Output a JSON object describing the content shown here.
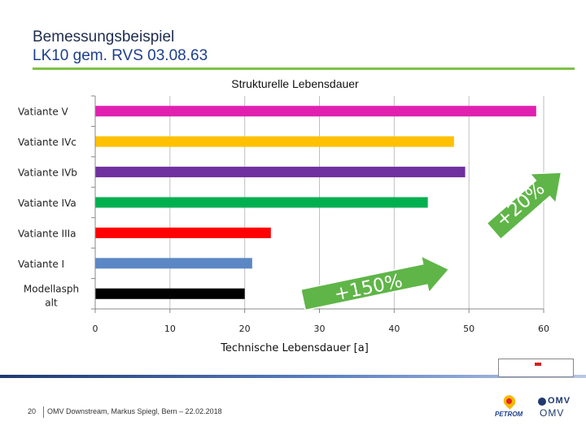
{
  "slide": {
    "title": "Bemessungsbeispiel",
    "subtitle": "LK10 gem. RVS 03.08.63",
    "page_number": "20",
    "footer": "OMV Downstream, Markus Spiegl, Bern – 22.02.2018",
    "logos": [
      "petrom-logo",
      "omv-logo",
      "university-stamp-logo"
    ],
    "stamp_text": [
      "",
      ""
    ],
    "petrom_label": "PETROM",
    "omv_top": "OMV",
    "omv_bottom": "OMV"
  },
  "colors": {
    "title": "#1f2d4d",
    "subtitle": "#1c3f8c",
    "accent_line": "#7ec242",
    "arrow": "#5fb548"
  },
  "chart_data": {
    "type": "bar",
    "orientation": "horizontal",
    "title": "Strukturelle Lebensdauer",
    "xlabel": "Technische Lebensdauer [a]",
    "ylabel": "",
    "xlim": [
      0,
      60
    ],
    "xticks": [
      "0",
      "10",
      "20",
      "30",
      "40",
      "50",
      "60"
    ],
    "grid": true,
    "legend": "none",
    "categories": [
      "Vatiante V",
      "Vatiante IVc",
      "Vatiante IVb",
      "Vatiante IVa",
      "Vatiante IIIa",
      "Vatiante I",
      "Modellasph alt"
    ],
    "values": [
      59,
      48,
      49.5,
      44.5,
      23.5,
      21,
      20
    ],
    "bar_colors": [
      "#e020b0",
      "#ffc000",
      "#7030a0",
      "#00b050",
      "#ff0000",
      "#5b87c5",
      "#000000"
    ],
    "annotations": [
      {
        "text": "+150%",
        "type": "arrow",
        "from_value": 30,
        "to_value": 47,
        "row_from": 6.2,
        "row_to": 5.2
      },
      {
        "text": "+20%",
        "type": "arrow",
        "from_value": 53,
        "to_value": 63,
        "row_from": 4.0,
        "row_to": 1.8
      }
    ]
  }
}
